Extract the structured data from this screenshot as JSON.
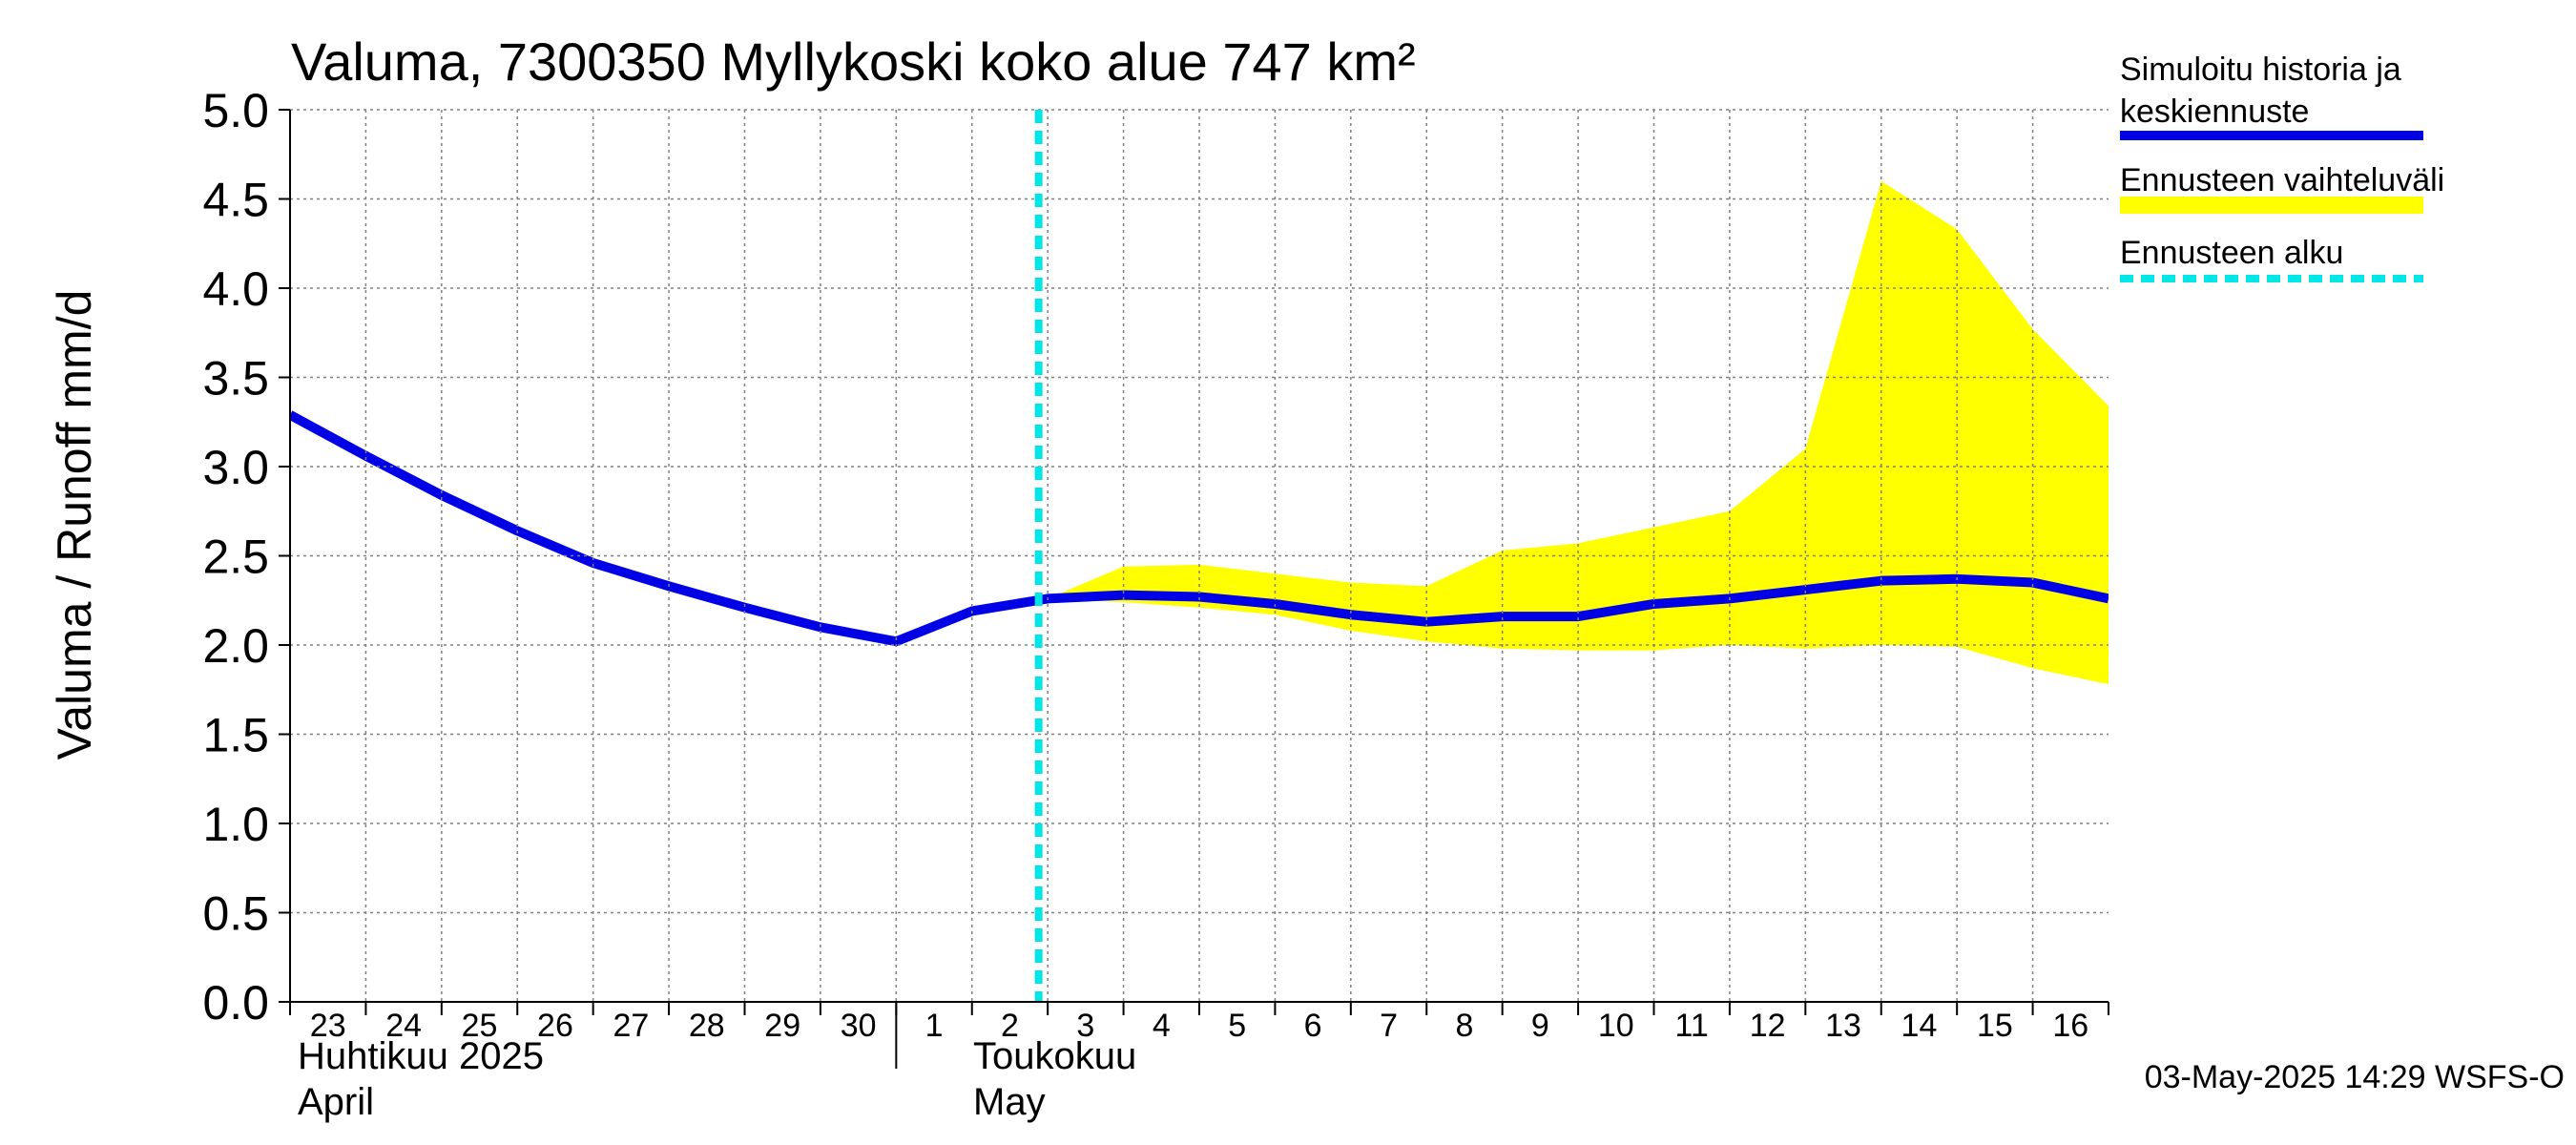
{
  "title": "Valuma, 7300350 Myllykoski koko alue 747 km²",
  "ylabel": "Valuma / Runoff     mm/d",
  "timestamp": "03-May-2025 14:29 WSFS-O",
  "month_labels": [
    {
      "line1": "Huhtikuu  2025",
      "line2": "April"
    },
    {
      "line1": "Toukokuu",
      "line2": "May"
    }
  ],
  "legend": [
    {
      "label": "Simuloitu historia ja keskiennuste",
      "color": "#0000e6",
      "style": "solid"
    },
    {
      "label": "Ennusteen vaihteluväli",
      "color": "#ffff00",
      "style": "solid"
    },
    {
      "label": "Ennusteen alku",
      "color": "#00e6e6",
      "style": "dashed"
    }
  ],
  "colors": {
    "simulated": "#0000e6",
    "range": "#ffff00",
    "forecast_start": "#00e6e6",
    "grid": "#808080"
  },
  "chart_data": {
    "type": "line",
    "title": "Valuma, 7300350 Myllykoski koko alue 747 km²",
    "ylabel": "Valuma / Runoff     mm/d",
    "ylim": [
      0,
      5
    ],
    "yticks": [
      "0.0",
      "0.5",
      "1.0",
      "1.5",
      "2.0",
      "2.5",
      "3.0",
      "3.5",
      "4.0",
      "4.5",
      "5.0"
    ],
    "x_dates": [
      "2025-04-23",
      "2025-04-24",
      "2025-04-25",
      "2025-04-26",
      "2025-04-27",
      "2025-04-28",
      "2025-04-29",
      "2025-04-30",
      "2025-05-01",
      "2025-05-02",
      "2025-05-03",
      "2025-05-04",
      "2025-05-05",
      "2025-05-06",
      "2025-05-07",
      "2025-05-08",
      "2025-05-09",
      "2025-05-10",
      "2025-05-11",
      "2025-05-12",
      "2025-05-13",
      "2025-05-14",
      "2025-05-15",
      "2025-05-16",
      "2025-05-17"
    ],
    "x_tick_labels": [
      "23",
      "24",
      "25",
      "26",
      "27",
      "28",
      "29",
      "30",
      "1",
      "2",
      "3",
      "4",
      "5",
      "6",
      "7",
      "8",
      "9",
      "10",
      "11",
      "12",
      "13",
      "14",
      "15",
      "16"
    ],
    "grid": true,
    "legend_position": "right",
    "forecast_start": "2025-05-03",
    "series": [
      {
        "name": "Simuloitu historia ja keskiennuste",
        "x": [
          "2025-04-23",
          "2025-04-24",
          "2025-04-25",
          "2025-04-26",
          "2025-04-27",
          "2025-04-28",
          "2025-04-29",
          "2025-04-30",
          "2025-05-01",
          "2025-05-02",
          "2025-05-03",
          "2025-05-04",
          "2025-05-05",
          "2025-05-06",
          "2025-05-07",
          "2025-05-08",
          "2025-05-09",
          "2025-05-10",
          "2025-05-11",
          "2025-05-12",
          "2025-05-13",
          "2025-05-14",
          "2025-05-15",
          "2025-05-16",
          "2025-05-17"
        ],
        "values": [
          3.29,
          3.06,
          2.84,
          2.64,
          2.46,
          2.33,
          2.21,
          2.1,
          2.02,
          2.19,
          2.26,
          2.28,
          2.27,
          2.23,
          2.17,
          2.13,
          2.16,
          2.16,
          2.23,
          2.26,
          2.31,
          2.36,
          2.37,
          2.35,
          2.26
        ]
      },
      {
        "name": "Ennusteen vaihteluväli",
        "x": [
          "2025-05-03",
          "2025-05-04",
          "2025-05-05",
          "2025-05-06",
          "2025-05-07",
          "2025-05-08",
          "2025-05-09",
          "2025-05-10",
          "2025-05-11",
          "2025-05-12",
          "2025-05-13",
          "2025-05-14",
          "2025-05-15",
          "2025-05-16",
          "2025-05-17"
        ],
        "upper": [
          2.26,
          2.44,
          2.45,
          2.4,
          2.35,
          2.33,
          2.53,
          2.57,
          2.66,
          2.75,
          3.1,
          4.6,
          4.33,
          3.77,
          3.34
        ],
        "lower": [
          2.26,
          2.24,
          2.21,
          2.17,
          2.08,
          2.02,
          1.98,
          1.97,
          1.97,
          2.0,
          1.98,
          2.0,
          1.99,
          1.87,
          1.78
        ]
      }
    ]
  }
}
